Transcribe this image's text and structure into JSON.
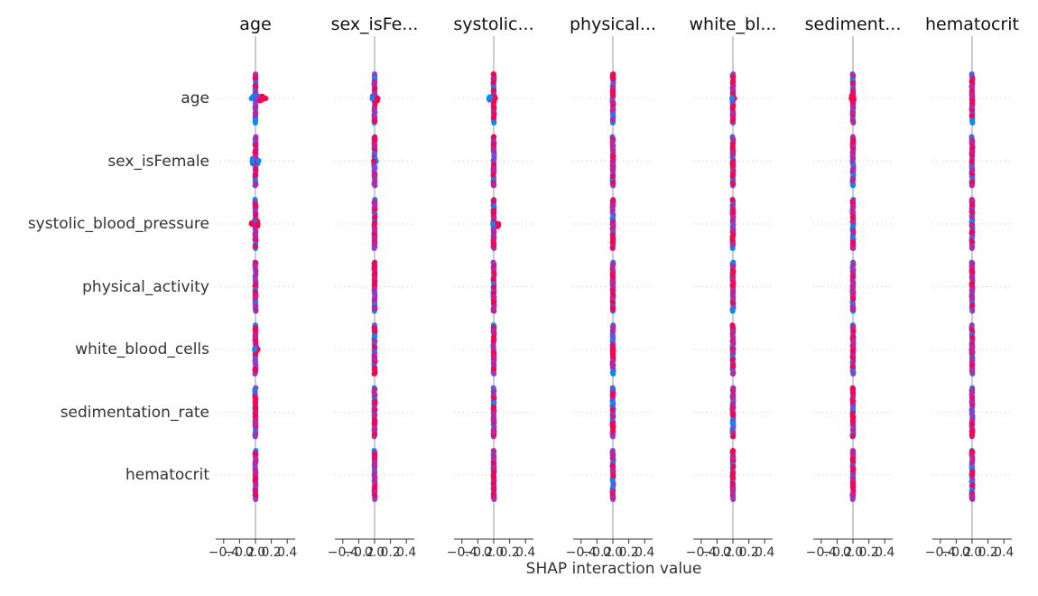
{
  "chart_data": {
    "type": "scatter",
    "title": "",
    "xlabel": "SHAP interaction value",
    "ylabel": "",
    "xlim": [
      -0.5,
      0.5
    ],
    "x_ticks": [
      -0.4,
      -0.2,
      0.0,
      0.2,
      0.4
    ],
    "x_tick_labels": [
      "−0.4",
      "−0.2",
      "0.0",
      "0.2",
      "0.4"
    ],
    "panel_titles": [
      "age",
      "sex_isFe...",
      "systolic...",
      "physical...",
      "white_bl...",
      "sediment...",
      "hematocrit"
    ],
    "row_labels": [
      "age",
      "sex_isFemale",
      "systolic_blood_pressure",
      "physical_activity",
      "white_blood_cells",
      "sedimentation_rate",
      "hematocrit"
    ],
    "colors": {
      "low": "#008bfb",
      "high": "#ff0051",
      "mid": "#8a3fd1",
      "zero_line": "#999999"
    },
    "cells": [
      [
        {
          "min": -0.05,
          "max": 0.13,
          "high_min": 0.05,
          "high_max": 0.13
        },
        {
          "min": -0.03,
          "max": 0.04,
          "high_min": 0.0,
          "high_max": 0.04
        },
        {
          "min": -0.06,
          "max": 0.02,
          "high_min": -0.02,
          "high_max": 0.02
        },
        {
          "min": -0.01,
          "max": 0.01,
          "high_min": -0.01,
          "high_max": 0.01
        },
        {
          "min": -0.01,
          "max": 0.02,
          "high_min": 0.0,
          "high_max": 0.02
        },
        {
          "min": -0.02,
          "max": 0.01,
          "high_min": -0.02,
          "high_max": 0.01
        },
        {
          "min": -0.01,
          "max": 0.01,
          "high_min": -0.01,
          "high_max": 0.01
        }
      ],
      [
        {
          "min": -0.04,
          "max": 0.04,
          "high_min": 0.0,
          "high_max": 0.02
        },
        {
          "min": -0.01,
          "max": 0.02,
          "high_min": -0.01,
          "high_max": 0.0
        },
        {
          "min": -0.01,
          "max": 0.01,
          "high_min": -0.01,
          "high_max": 0.01
        },
        {
          "min": -0.01,
          "max": 0.01,
          "high_min": -0.01,
          "high_max": 0.01
        },
        {
          "min": -0.01,
          "max": 0.01,
          "high_min": -0.01,
          "high_max": 0.01
        },
        {
          "min": -0.01,
          "max": 0.01,
          "high_min": -0.01,
          "high_max": 0.01
        },
        {
          "min": -0.01,
          "max": 0.01,
          "high_min": -0.01,
          "high_max": 0.01
        }
      ],
      [
        {
          "min": -0.05,
          "max": 0.03,
          "high_min": -0.05,
          "high_max": 0.03
        },
        {
          "min": -0.01,
          "max": 0.01,
          "high_min": -0.01,
          "high_max": 0.01
        },
        {
          "min": -0.01,
          "max": 0.06,
          "high_min": 0.0,
          "high_max": 0.06
        },
        {
          "min": -0.01,
          "max": 0.01,
          "high_min": -0.01,
          "high_max": 0.01
        },
        {
          "min": -0.01,
          "max": 0.01,
          "high_min": -0.01,
          "high_max": 0.01
        },
        {
          "min": -0.01,
          "max": 0.01,
          "high_min": -0.01,
          "high_max": 0.01
        },
        {
          "min": -0.01,
          "max": 0.01,
          "high_min": -0.01,
          "high_max": 0.01
        }
      ],
      [
        {
          "min": -0.01,
          "max": 0.01,
          "high_min": -0.01,
          "high_max": 0.01
        },
        {
          "min": -0.01,
          "max": 0.01,
          "high_min": -0.01,
          "high_max": 0.01
        },
        {
          "min": -0.01,
          "max": 0.01,
          "high_min": -0.01,
          "high_max": 0.01
        },
        {
          "min": -0.01,
          "max": 0.01,
          "high_min": -0.01,
          "high_max": 0.01
        },
        {
          "min": -0.01,
          "max": 0.01,
          "high_min": -0.01,
          "high_max": 0.01
        },
        {
          "min": -0.01,
          "max": 0.01,
          "high_min": -0.01,
          "high_max": 0.01
        },
        {
          "min": -0.01,
          "max": 0.01,
          "high_min": -0.01,
          "high_max": 0.01
        }
      ],
      [
        {
          "min": -0.01,
          "max": 0.03,
          "high_min": 0.0,
          "high_max": 0.03
        },
        {
          "min": -0.01,
          "max": 0.01,
          "high_min": -0.01,
          "high_max": 0.01
        },
        {
          "min": -0.01,
          "max": 0.01,
          "high_min": -0.01,
          "high_max": 0.01
        },
        {
          "min": -0.01,
          "max": 0.01,
          "high_min": -0.01,
          "high_max": 0.01
        },
        {
          "min": -0.01,
          "max": 0.01,
          "high_min": -0.01,
          "high_max": 0.01
        },
        {
          "min": -0.01,
          "max": 0.01,
          "high_min": -0.01,
          "high_max": 0.01
        },
        {
          "min": -0.01,
          "max": 0.01,
          "high_min": -0.01,
          "high_max": 0.01
        }
      ],
      [
        {
          "min": -0.01,
          "max": 0.01,
          "high_min": -0.01,
          "high_max": 0.01
        },
        {
          "min": -0.01,
          "max": 0.01,
          "high_min": -0.01,
          "high_max": 0.01
        },
        {
          "min": -0.01,
          "max": 0.01,
          "high_min": -0.01,
          "high_max": 0.01
        },
        {
          "min": -0.01,
          "max": 0.01,
          "high_min": -0.01,
          "high_max": 0.01
        },
        {
          "min": -0.01,
          "max": 0.01,
          "high_min": -0.01,
          "high_max": 0.01
        },
        {
          "min": -0.01,
          "max": 0.01,
          "high_min": -0.01,
          "high_max": 0.01
        },
        {
          "min": -0.01,
          "max": 0.01,
          "high_min": -0.01,
          "high_max": 0.01
        }
      ],
      [
        {
          "min": -0.01,
          "max": 0.01,
          "high_min": -0.01,
          "high_max": 0.01
        },
        {
          "min": -0.01,
          "max": 0.01,
          "high_min": -0.01,
          "high_max": 0.01
        },
        {
          "min": -0.01,
          "max": 0.01,
          "high_min": -0.01,
          "high_max": 0.01
        },
        {
          "min": -0.01,
          "max": 0.01,
          "high_min": -0.01,
          "high_max": 0.01
        },
        {
          "min": -0.01,
          "max": 0.01,
          "high_min": -0.01,
          "high_max": 0.01
        },
        {
          "min": -0.01,
          "max": 0.01,
          "high_min": -0.01,
          "high_max": 0.01
        },
        {
          "min": -0.01,
          "max": 0.01,
          "high_min": -0.01,
          "high_max": 0.01
        }
      ]
    ]
  }
}
